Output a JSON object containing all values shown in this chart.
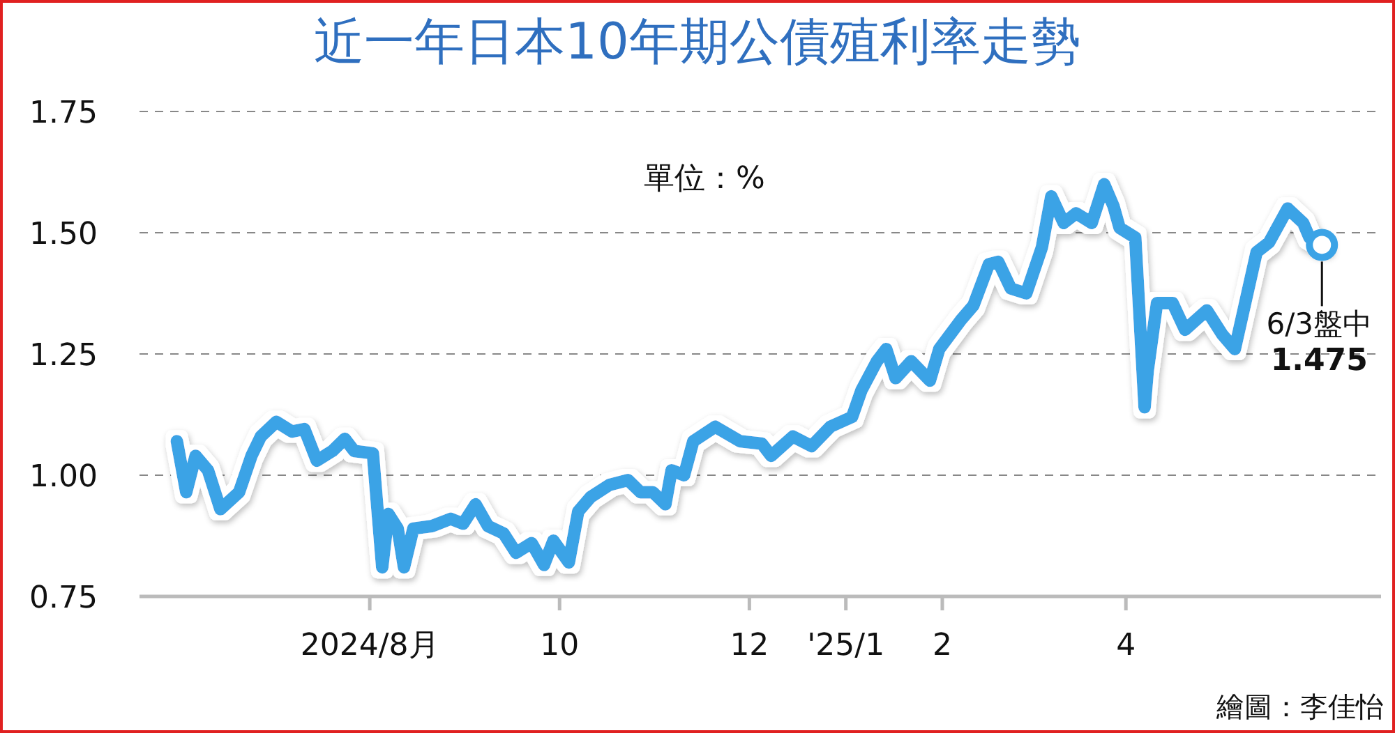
{
  "chart_data": {
    "type": "line",
    "title": "近一年日本10年期公債殖利率走勢",
    "annotations": [
      "單位：%",
      {
        "text": "6/3盤中",
        "x": "2025-06-03",
        "y": 1.475
      },
      "1.475",
      "繪圖：李佳怡"
    ],
    "x": [
      "2024-05-31",
      "2024-06-03",
      "2024-06-06",
      "2024-06-10",
      "2024-06-14",
      "2024-06-20",
      "2024-06-24",
      "2024-06-27",
      "2024-07-02",
      "2024-07-07",
      "2024-07-11",
      "2024-07-15",
      "2024-07-20",
      "2024-07-24",
      "2024-07-27",
      "2024-08-02",
      "2024-08-05",
      "2024-08-07",
      "2024-08-10",
      "2024-08-12",
      "2024-08-15",
      "2024-08-21",
      "2024-08-27",
      "2024-08-31",
      "2024-09-04",
      "2024-09-08",
      "2024-09-13",
      "2024-09-17",
      "2024-09-22",
      "2024-09-26",
      "2024-09-29",
      "2024-10-04",
      "2024-10-07",
      "2024-10-11",
      "2024-10-17",
      "2024-10-23",
      "2024-10-27",
      "2024-10-31",
      "2024-11-04",
      "2024-11-06",
      "2024-11-10",
      "2024-11-13",
      "2024-11-20",
      "2024-11-28",
      "2024-12-05",
      "2024-12-08",
      "2024-12-15",
      "2024-12-21",
      "2024-12-27",
      "2025-01-03",
      "2025-01-06",
      "2025-01-11",
      "2025-01-14",
      "2025-01-17",
      "2025-01-22",
      "2025-01-28",
      "2025-01-31",
      "2025-02-07",
      "2025-02-11",
      "2025-02-16",
      "2025-02-19",
      "2025-02-23",
      "2025-02-28",
      "2025-03-05",
      "2025-03-08",
      "2025-03-12",
      "2025-03-16",
      "2025-03-21",
      "2025-03-25",
      "2025-03-28",
      "2025-03-30",
      "2025-04-04",
      "2025-04-07",
      "2025-04-08",
      "2025-04-11",
      "2025-04-16",
      "2025-04-20",
      "2025-04-27",
      "2025-05-02",
      "2025-05-06",
      "2025-05-13",
      "2025-05-17",
      "2025-05-23",
      "2025-05-28",
      "2025-05-30",
      "2025-06-03"
    ],
    "series": [
      {
        "color": "#3ba3e6",
        "values": [
          1.07,
          0.965,
          1.04,
          1.01,
          0.93,
          0.965,
          1.04,
          1.08,
          1.11,
          1.09,
          1.095,
          1.03,
          1.05,
          1.075,
          1.05,
          1.045,
          0.81,
          0.92,
          0.89,
          0.81,
          0.89,
          0.895,
          0.91,
          0.9,
          0.94,
          0.895,
          0.88,
          0.84,
          0.86,
          0.815,
          0.865,
          0.82,
          0.925,
          0.955,
          0.98,
          0.99,
          0.965,
          0.965,
          0.94,
          1.01,
          1.0,
          1.07,
          1.1,
          1.07,
          1.065,
          1.04,
          1.08,
          1.06,
          1.1,
          1.12,
          1.175,
          1.235,
          1.26,
          1.2,
          1.235,
          1.195,
          1.26,
          1.32,
          1.35,
          1.435,
          1.44,
          1.385,
          1.375,
          1.47,
          1.575,
          1.52,
          1.54,
          1.52,
          1.6,
          1.555,
          1.51,
          1.49,
          1.14,
          1.215,
          1.355,
          1.355,
          1.3,
          1.34,
          1.29,
          1.26,
          1.46,
          1.48,
          1.55,
          1.52,
          1.49,
          1.475
        ]
      }
    ],
    "xlim": [
      "2024-05-19",
      "2025-06-22"
    ],
    "xticks": [
      {
        "value": "2024-08-01",
        "label": "2024/8月"
      },
      {
        "value": "2024-10-01",
        "label": "10"
      },
      {
        "value": "2024-12-01",
        "label": "12"
      },
      {
        "value": "2025-01-01",
        "label": "'25/1"
      },
      {
        "value": "2025-02-01",
        "label": "2"
      },
      {
        "value": "2025-04-01",
        "label": "4"
      }
    ],
    "ylim": [
      0.75,
      1.75
    ],
    "yticks": [
      {
        "value": 0.75,
        "label": "0.75"
      },
      {
        "value": 1.0,
        "label": "1.00"
      },
      {
        "value": 1.25,
        "label": "1.25"
      },
      {
        "value": 1.5,
        "label": "1.50"
      },
      {
        "value": 1.75,
        "label": "1.75"
      }
    ],
    "grid": "y",
    "line_style": "solid"
  }
}
